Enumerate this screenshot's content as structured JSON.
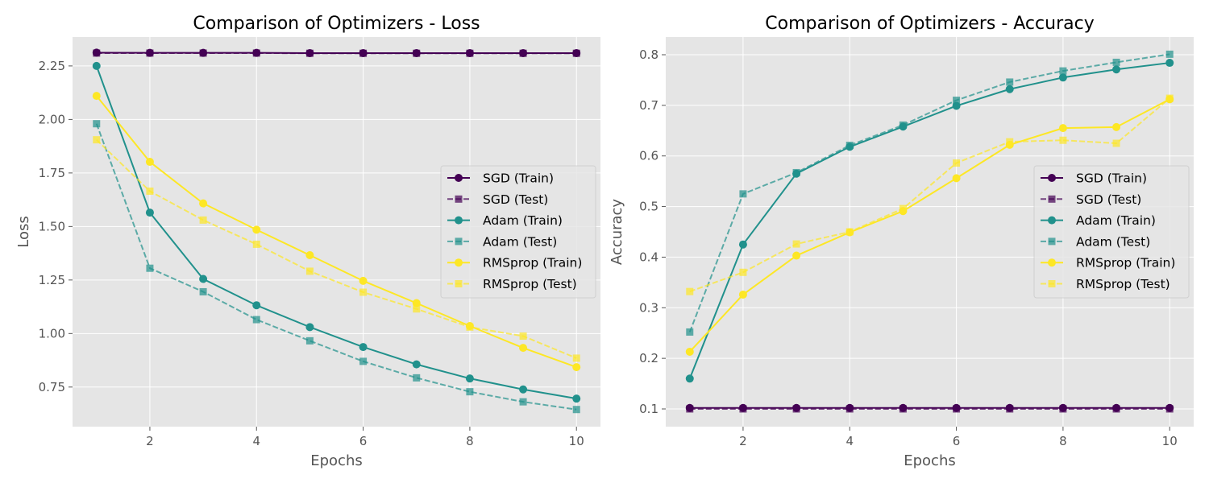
{
  "chart_data": [
    {
      "type": "line",
      "title": "Comparison of Optimizers - Loss",
      "xlabel": "Epochs",
      "ylabel": "Loss",
      "xlim": [
        0.55,
        10.45
      ],
      "ylim": [
        0.565,
        2.385
      ],
      "xticks": [
        2,
        4,
        6,
        8,
        10
      ],
      "yticks": [
        0.75,
        1.0,
        1.25,
        1.5,
        1.75,
        2.0,
        2.25
      ],
      "ytick_labels": [
        "0.75",
        "1.00",
        "1.25",
        "1.50",
        "1.75",
        "2.00",
        "2.25"
      ],
      "grid": true,
      "legend_position": "center-right",
      "x": [
        1,
        2,
        3,
        4,
        5,
        6,
        7,
        8,
        9,
        10
      ],
      "series": [
        {
          "name": "SGD (Train)",
          "color": "#440154",
          "dashed": false,
          "marker": "circle",
          "values": [
            2.312,
            2.311,
            2.311,
            2.311,
            2.31,
            2.31,
            2.31,
            2.31,
            2.31,
            2.31
          ]
        },
        {
          "name": "SGD (Test)",
          "color": "#440154",
          "dashed": true,
          "marker": "square",
          "values": [
            2.31,
            2.31,
            2.31,
            2.31,
            2.309,
            2.309,
            2.309,
            2.309,
            2.309,
            2.309
          ]
        },
        {
          "name": "Adam (Train)",
          "color": "#21918c",
          "dashed": false,
          "marker": "circle",
          "values": [
            2.25,
            1.565,
            1.255,
            1.132,
            1.03,
            0.937,
            0.856,
            0.79,
            0.739,
            0.696
          ]
        },
        {
          "name": "Adam (Test)",
          "color": "#21918c",
          "dashed": true,
          "marker": "square",
          "values": [
            1.98,
            1.305,
            1.195,
            1.065,
            0.966,
            0.87,
            0.793,
            0.728,
            0.681,
            0.645
          ]
        },
        {
          "name": "RMSprop (Train)",
          "color": "#fde725",
          "dashed": false,
          "marker": "circle",
          "values": [
            2.11,
            1.802,
            1.608,
            1.485,
            1.366,
            1.246,
            1.142,
            1.035,
            0.933,
            0.843
          ]
        },
        {
          "name": "RMSprop (Test)",
          "color": "#fde725",
          "dashed": true,
          "marker": "square",
          "values": [
            1.905,
            1.665,
            1.53,
            1.417,
            1.291,
            1.193,
            1.115,
            1.03,
            0.988,
            0.885
          ]
        }
      ]
    },
    {
      "type": "line",
      "title": "Comparison of Optimizers - Accuracy",
      "xlabel": "Epochs",
      "ylabel": "Accuracy",
      "xlim": [
        0.55,
        10.45
      ],
      "ylim": [
        0.065,
        0.835
      ],
      "xticks": [
        2,
        4,
        6,
        8,
        10
      ],
      "yticks": [
        0.1,
        0.2,
        0.3,
        0.4,
        0.5,
        0.6,
        0.7,
        0.8
      ],
      "ytick_labels": [
        "0.1",
        "0.2",
        "0.3",
        "0.4",
        "0.5",
        "0.6",
        "0.7",
        "0.8"
      ],
      "grid": true,
      "legend_position": "center-right",
      "x": [
        1,
        2,
        3,
        4,
        5,
        6,
        7,
        8,
        9,
        10
      ],
      "series": [
        {
          "name": "SGD (Train)",
          "color": "#440154",
          "dashed": false,
          "marker": "circle",
          "values": [
            0.102,
            0.102,
            0.102,
            0.102,
            0.102,
            0.102,
            0.102,
            0.102,
            0.102,
            0.102
          ]
        },
        {
          "name": "SGD (Test)",
          "color": "#440154",
          "dashed": true,
          "marker": "square",
          "values": [
            0.1,
            0.1,
            0.1,
            0.1,
            0.1,
            0.1,
            0.1,
            0.1,
            0.1,
            0.1
          ]
        },
        {
          "name": "Adam (Train)",
          "color": "#21918c",
          "dashed": false,
          "marker": "circle",
          "values": [
            0.16,
            0.425,
            0.565,
            0.618,
            0.658,
            0.699,
            0.732,
            0.755,
            0.771,
            0.784
          ]
        },
        {
          "name": "Adam (Test)",
          "color": "#21918c",
          "dashed": true,
          "marker": "square",
          "values": [
            0.252,
            0.525,
            0.567,
            0.621,
            0.661,
            0.71,
            0.746,
            0.768,
            0.785,
            0.801
          ]
        },
        {
          "name": "RMSprop (Train)",
          "color": "#fde725",
          "dashed": false,
          "marker": "circle",
          "values": [
            0.213,
            0.326,
            0.403,
            0.449,
            0.491,
            0.556,
            0.622,
            0.655,
            0.657,
            0.712
          ]
        },
        {
          "name": "RMSprop (Test)",
          "color": "#fde725",
          "dashed": true,
          "marker": "square",
          "values": [
            0.332,
            0.37,
            0.426,
            0.45,
            0.496,
            0.586,
            0.628,
            0.631,
            0.625,
            0.714
          ]
        }
      ]
    }
  ]
}
